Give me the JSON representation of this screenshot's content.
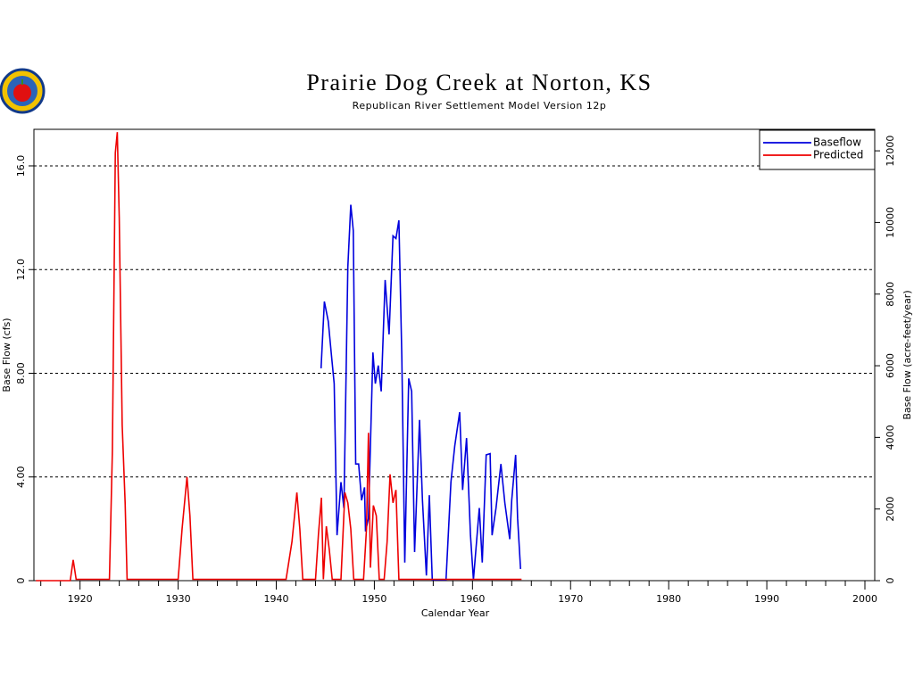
{
  "chart_data": {
    "type": "line",
    "title": "Prairie Dog Creek at Norton, KS",
    "subtitle": "Republican River Settlement Model Version 12p",
    "xlabel": "Calendar Year",
    "ylabel": "Base Flow (cfs)",
    "y2label": "Base Flow (acre-feet/year)",
    "xlim": [
      1915.3,
      2001
    ],
    "xticks": [
      1920,
      1930,
      1940,
      1950,
      1960,
      1970,
      1980,
      1990,
      2000
    ],
    "xminorticks": [
      1916,
      1918,
      1922,
      1924,
      1926,
      1928,
      1932,
      1934,
      1936,
      1938,
      1942,
      1944,
      1946,
      1948,
      1952,
      1954,
      1956,
      1958,
      1962,
      1964,
      1966,
      1968,
      1972,
      1974,
      1976,
      1978,
      1982,
      1984,
      1986,
      1988,
      1992,
      1994,
      1996,
      1998
    ],
    "ylim": [
      0,
      17.41
    ],
    "yticks": [
      0,
      {
        "value": 4,
        "label": "4.00"
      },
      {
        "value": 8,
        "label": "8.00"
      },
      {
        "value": 12,
        "label": "12.0"
      },
      {
        "value": 16,
        "label": "16.0"
      }
    ],
    "y2lim": [
      0,
      12600
    ],
    "y2ticks": [
      0,
      2000,
      4000,
      6000,
      8000,
      10000,
      12000
    ],
    "grid": true,
    "legend": "upper right",
    "series": [
      {
        "name": "Baseflow",
        "color": "#0000dd",
        "x": [
          1944.57,
          1944.9,
          1945.3,
          1945.65,
          1945.9,
          1946.2,
          1946.6,
          1946.9,
          1947.3,
          1947.6,
          1947.85,
          1948.1,
          1948.4,
          1948.7,
          1949.0,
          1949.1,
          1949.4,
          1949.85,
          1950.1,
          1950.4,
          1950.7,
          1951.1,
          1951.5,
          1951.9,
          1952.2,
          1952.5,
          1952.8,
          1953.1,
          1953.5,
          1953.8,
          1954.1,
          1954.6,
          1954.9,
          1955.3,
          1955.6,
          1955.9,
          1957.3,
          1957.8,
          1958.2,
          1958.7,
          1959.0,
          1959.4,
          1959.8,
          1960.1,
          1960.7,
          1961.0,
          1961.4,
          1961.8,
          1962.0,
          1962.4,
          1962.9,
          1963.3,
          1963.8,
          1964.0,
          1964.4,
          1964.6,
          1964.9
        ],
        "values": [
          8.19,
          10.77,
          10.0,
          8.6,
          7.6,
          1.75,
          3.8,
          2.8,
          12.1,
          14.5,
          13.5,
          4.5,
          4.5,
          3.1,
          3.6,
          1.9,
          2.4,
          8.8,
          7.6,
          8.3,
          7.3,
          11.6,
          9.5,
          13.3,
          13.2,
          13.9,
          8.6,
          0.7,
          7.8,
          7.3,
          1.1,
          6.2,
          3.1,
          0.2,
          3.3,
          0.03,
          0.03,
          3.8,
          5.2,
          6.5,
          3.5,
          5.5,
          1.75,
          0.03,
          2.8,
          0.7,
          4.85,
          4.9,
          1.75,
          2.8,
          4.5,
          3.0,
          1.6,
          3.1,
          4.85,
          2.4,
          0.45
        ]
      },
      {
        "name": "Predicted",
        "color": "#ee0000",
        "x": [
          1915.5,
          1919.0,
          1919.3,
          1919.6,
          1923.0,
          1923.3,
          1923.6,
          1923.8,
          1924.0,
          1924.3,
          1924.6,
          1924.8,
          1930.0,
          1930.4,
          1930.7,
          1930.9,
          1931.2,
          1931.5,
          1941.0,
          1941.6,
          1942.1,
          1942.4,
          1942.7,
          1944.0,
          1944.3,
          1944.6,
          1944.8,
          1945.1,
          1945.4,
          1945.7,
          1946.6,
          1947.0,
          1947.3,
          1947.6,
          1947.9,
          1948.9,
          1949.2,
          1949.4,
          1949.6,
          1949.9,
          1950.2,
          1950.5,
          1951.0,
          1951.3,
          1951.6,
          1951.9,
          1952.2,
          1952.5,
          1965.0
        ],
        "values": [
          0,
          0,
          0.8,
          0.05,
          0.05,
          5,
          16.5,
          17.3,
          14,
          6,
          3,
          0.05,
          0.05,
          2,
          3.2,
          4.0,
          2.5,
          0.05,
          0.05,
          1.5,
          3.4,
          2,
          0.05,
          0.05,
          1.8,
          3.2,
          0.05,
          2.1,
          1.2,
          0.05,
          0.05,
          3.4,
          3.0,
          2.0,
          0.05,
          0.05,
          2,
          5.7,
          0.5,
          2.9,
          2.5,
          0.05,
          0.05,
          1.5,
          4.1,
          3.0,
          3.5,
          0.05,
          0.05
        ]
      }
    ]
  }
}
